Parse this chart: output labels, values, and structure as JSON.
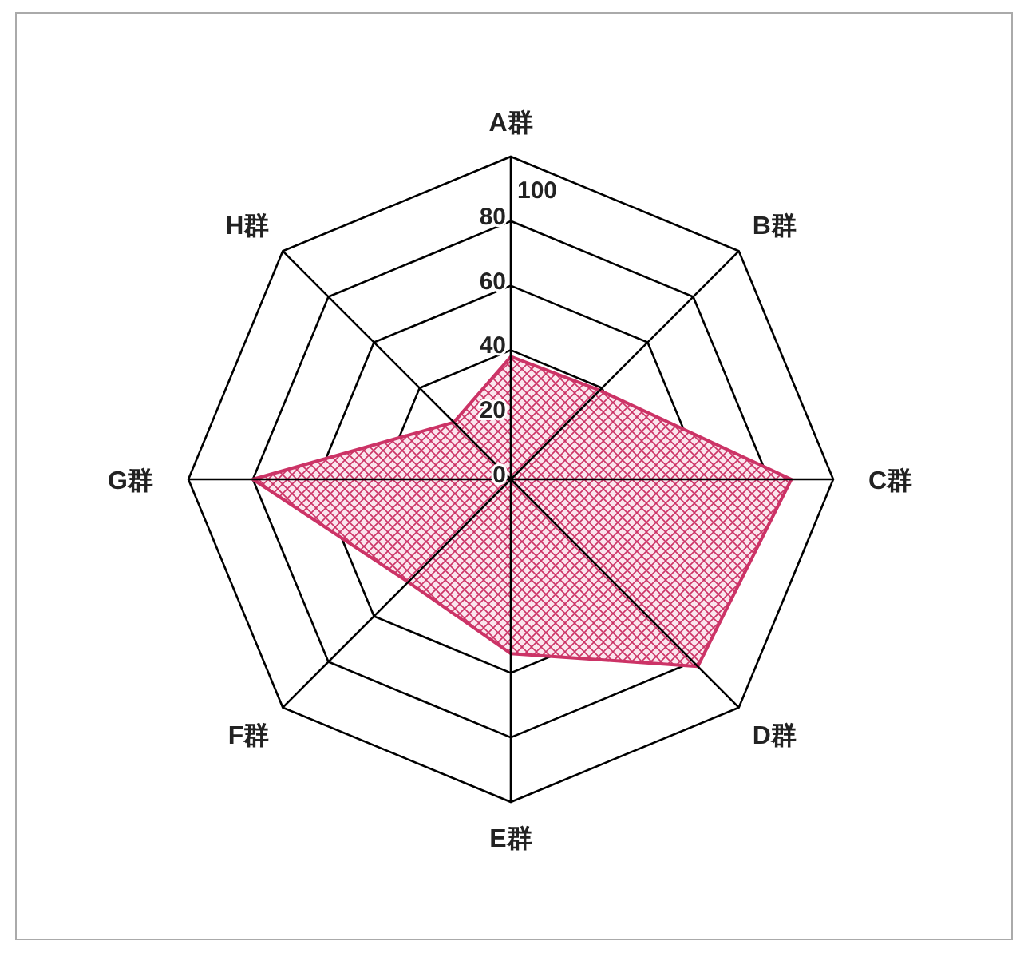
{
  "chart_data": {
    "type": "radar",
    "categories": [
      "A群",
      "B群",
      "C群",
      "D群",
      "E群",
      "F群",
      "G群",
      "H群"
    ],
    "series": [
      {
        "color": "#cc3366",
        "values": [
          38,
          39,
          87,
          82,
          54,
          45,
          80,
          25
        ]
      }
    ],
    "ylim": [
      0,
      100
    ],
    "yticks": [
      0,
      20,
      40,
      60,
      80,
      100
    ],
    "grid": true
  }
}
